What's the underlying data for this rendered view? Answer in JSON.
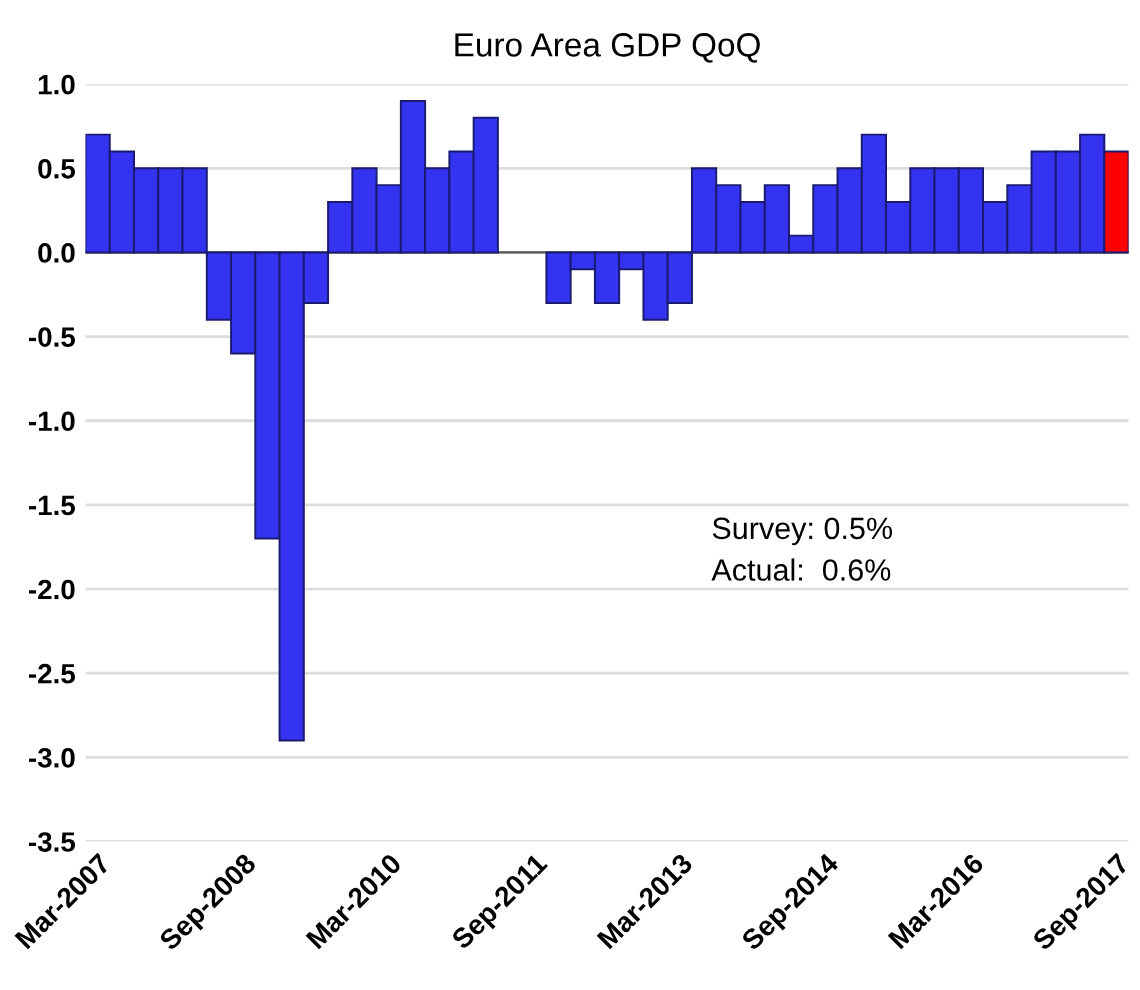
{
  "chart_data": {
    "type": "bar",
    "title": "Euro Area GDP QoQ",
    "categories": [
      "Mar-2007",
      null,
      null,
      null,
      null,
      null,
      "Sep-2008",
      null,
      null,
      null,
      null,
      null,
      "Mar-2010",
      null,
      null,
      null,
      null,
      null,
      "Sep-2011",
      null,
      null,
      null,
      null,
      null,
      "Mar-2013",
      null,
      null,
      null,
      null,
      null,
      "Sep-2014",
      null,
      null,
      null,
      null,
      null,
      "Mar-2016",
      null,
      null,
      null,
      null,
      null,
      "Sep-2017"
    ],
    "values": [
      0.7,
      0.6,
      0.5,
      0.5,
      0.5,
      -0.4,
      -0.6,
      -1.7,
      -2.9,
      -0.3,
      0.3,
      0.5,
      0.4,
      0.9,
      0.5,
      0.6,
      0.8,
      null,
      null,
      -0.3,
      -0.1,
      -0.3,
      -0.1,
      -0.4,
      -0.3,
      0.5,
      0.4,
      0.3,
      0.4,
      0.1,
      0.4,
      0.5,
      0.7,
      0.3,
      0.5,
      0.5,
      0.5,
      0.3,
      0.4,
      0.6,
      0.6,
      0.7,
      0.6
    ],
    "colors": [
      "#3333f0",
      "#3333f0",
      "#3333f0",
      "#3333f0",
      "#3333f0",
      "#3333f0",
      "#3333f0",
      "#3333f0",
      "#3333f0",
      "#3333f0",
      "#3333f0",
      "#3333f0",
      "#3333f0",
      "#3333f0",
      "#3333f0",
      "#3333f0",
      "#3333f0",
      "#3333f0",
      "#3333f0",
      "#3333f0",
      "#3333f0",
      "#3333f0",
      "#3333f0",
      "#3333f0",
      "#3333f0",
      "#3333f0",
      "#3333f0",
      "#3333f0",
      "#3333f0",
      "#3333f0",
      "#3333f0",
      "#3333f0",
      "#3333f0",
      "#3333f0",
      "#3333f0",
      "#3333f0",
      "#3333f0",
      "#3333f0",
      "#3333f0",
      "#3333f0",
      "#3333f0",
      "#3333f0",
      "#ff0000"
    ],
    "ylim": [
      -3.5,
      1.0
    ],
    "yticks": [
      {
        "value": -3.5,
        "label": "-3.5"
      },
      {
        "value": -3,
        "label": "-3.0"
      },
      {
        "value": -2.5,
        "label": "-2.5"
      },
      {
        "value": -2,
        "label": "-2.0"
      },
      {
        "value": -1.5,
        "label": "-1.5"
      },
      {
        "value": -1,
        "label": "-1.0"
      },
      {
        "value": -0.5,
        "label": "-0.5"
      },
      {
        "value": 0,
        "label": "0.0"
      },
      {
        "value": 0.5,
        "label": "0.5"
      },
      {
        "value": 1,
        "label": "1.0"
      }
    ],
    "grid": "y",
    "annotations": [
      "Survey: 0.5%",
      "Actual:  0.6%"
    ]
  }
}
